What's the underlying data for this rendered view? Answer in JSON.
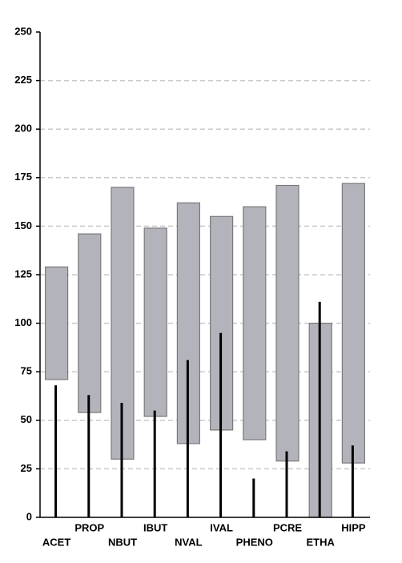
{
  "chart_data": {
    "type": "range",
    "categories": [
      "ACET",
      "PROP",
      "NBUT",
      "IBUT",
      "NVAL",
      "IVAL",
      "PHENO",
      "PCRE",
      "ETHA",
      "HIPP"
    ],
    "low": [
      71,
      54,
      30,
      52,
      38,
      45,
      40,
      29,
      0,
      28
    ],
    "high": [
      129,
      146,
      170,
      149,
      162,
      155,
      160,
      171,
      100,
      172
    ],
    "values": [
      68,
      63,
      59,
      55,
      81,
      95,
      20,
      34,
      111,
      37
    ],
    "range_color": "#b3b3bb",
    "line_color": "#000000",
    "ylim": [
      0,
      250
    ],
    "yticks": [
      0,
      25,
      50,
      75,
      100,
      125,
      150,
      175,
      200,
      225,
      250
    ],
    "grid": true
  }
}
